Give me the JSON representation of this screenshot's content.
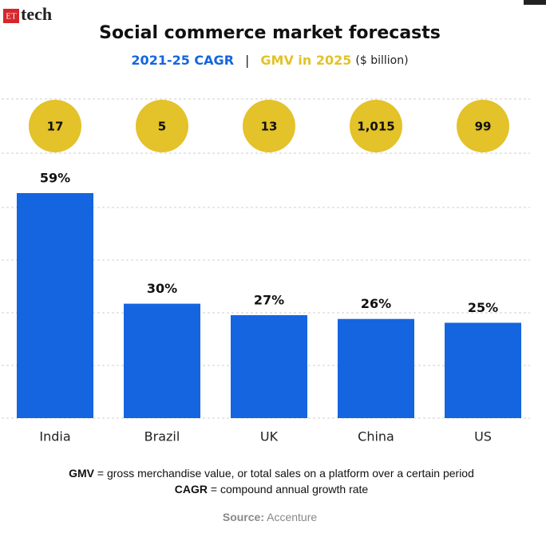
{
  "brand": {
    "mark": "ET",
    "name": "tech"
  },
  "chart_data": {
    "type": "bar",
    "title": "Social commerce market forecasts",
    "subtitle_separator": "|",
    "gmv_unit": "($ billion)",
    "categories": [
      "India",
      "Brazil",
      "UK",
      "China",
      "US"
    ],
    "series": [
      {
        "name": "2021-25 CAGR",
        "color": "#1565e0",
        "values": [
          59,
          30,
          27,
          26,
          25
        ],
        "value_labels": [
          "59%",
          "30%",
          "27%",
          "26%",
          "25%"
        ]
      },
      {
        "name": "GMV in 2025",
        "color": "#e3c22a",
        "values": [
          17,
          5,
          13,
          1015,
          99
        ],
        "value_labels": [
          "17",
          "5",
          "13",
          "1,015",
          "99"
        ]
      }
    ],
    "grid": true
  },
  "notes": [
    {
      "term": "GMV",
      "text": " = gross merchandise value, or total sales on a platform over a certain period"
    },
    {
      "term": "CAGR",
      "text": " = compound annual growth rate"
    }
  ],
  "source": {
    "label": "Source:",
    "text": " Accenture"
  }
}
